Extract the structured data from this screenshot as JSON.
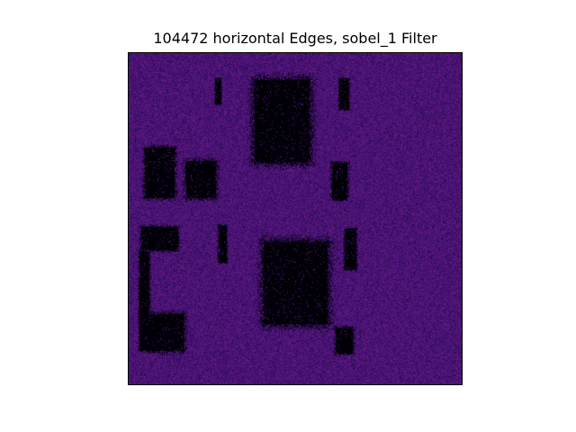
{
  "figure": {
    "title": "104472 horizontal Edges, sobel_1 Filter"
  },
  "image": {
    "description_key": "sobel-edge-map",
    "colormap": "magma",
    "colors": {
      "background_base": "#5b1f7e",
      "noise_high": "#c0476a",
      "noise_low": "#3a1066",
      "dark_regions": "#000000"
    }
  }
}
